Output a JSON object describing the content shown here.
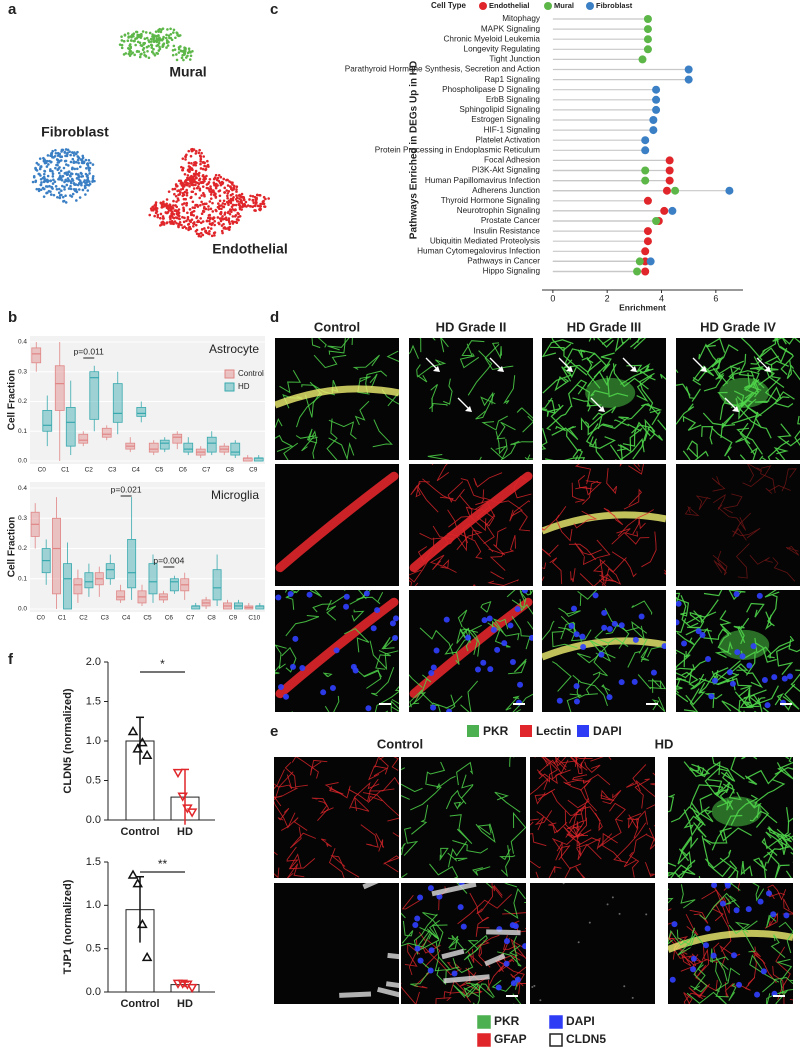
{
  "panel_labels": [
    "a",
    "b",
    "c",
    "d",
    "e",
    "f"
  ],
  "umap": {
    "clusters": [
      "Mural",
      "Fibroblast",
      "Endothelial"
    ]
  },
  "chart_data": [
    {
      "type": "lollipop",
      "y_label": "Pathways Enriched in DEGs Up in HD",
      "x_label": "Enrichment",
      "legend_title": "Cell Type",
      "categories": [
        "Mitophagy",
        "MAPK Signaling",
        "Chronic Myeloid Leukemia",
        "Longevity Regulating",
        "Tight Junction",
        "Parathyroid Hormone Synthesis, Secretion and Action",
        "Rap1 Signaling",
        "Phospholipase D Signaling",
        "ErbB Signaling",
        "Sphingolipid Signaling",
        "Estrogen Signaling",
        "HIF-1 Signaling",
        "Platelet Activation",
        "Protein Processing in Endoplasmic Reticulum",
        "Focal Adhesion",
        "PI3K-Akt Signaling",
        "Human Papillomavirus Infection",
        "Adherens Junction",
        "Thyroid Hormone Signaling",
        "Neurotrophin Signaling",
        "Prostate Cancer",
        "Insulin Resistance",
        "Ubiquitin Mediated Proteolysis",
        "Human Cytomegalovirus Infection",
        "Pathways in Cancer",
        "Hippo Signaling"
      ],
      "series": [
        {
          "name": "Endothelial",
          "color": "#e0262a",
          "values": [
            null,
            null,
            null,
            null,
            null,
            null,
            null,
            null,
            null,
            null,
            null,
            null,
            null,
            null,
            4.3,
            4.3,
            4.3,
            4.2,
            3.5,
            4.1,
            3.9,
            3.5,
            3.5,
            3.4,
            3.4,
            3.4
          ]
        },
        {
          "name": "Mural",
          "color": "#5cb748",
          "values": [
            3.5,
            3.5,
            3.5,
            3.5,
            3.3,
            null,
            null,
            null,
            null,
            null,
            null,
            null,
            null,
            null,
            null,
            3.4,
            3.4,
            4.5,
            null,
            null,
            3.8,
            null,
            null,
            null,
            3.2,
            3.1
          ]
        },
        {
          "name": "Fibroblast",
          "color": "#3b7fc4",
          "values": [
            null,
            null,
            null,
            null,
            null,
            5.0,
            5.0,
            3.8,
            3.8,
            3.8,
            3.7,
            3.7,
            3.4,
            3.4,
            null,
            null,
            null,
            6.5,
            null,
            4.4,
            null,
            null,
            null,
            null,
            3.6,
            null
          ]
        }
      ],
      "xlim": [
        -0.4,
        7.0
      ],
      "xticks": [
        0,
        2,
        4,
        6
      ]
    },
    {
      "type": "box",
      "title": "Astrocyte",
      "y_label": "Cell Fraction",
      "legend": "upper right",
      "grid": true,
      "categories": [
        "C0",
        "C1",
        "C2",
        "C3",
        "C4",
        "C5",
        "C6",
        "C7",
        "C8",
        "C9"
      ],
      "series": [
        {
          "name": "Control",
          "color": "#e08585",
          "values": [
            [
              0.3,
              0.33,
              0.36,
              0.38,
              0.4
            ],
            [
              0.0,
              0.17,
              0.26,
              0.32,
              0.4
            ],
            [
              0.05,
              0.06,
              0.07,
              0.09,
              0.1
            ],
            [
              0.07,
              0.08,
              0.09,
              0.11,
              0.12
            ],
            [
              0.03,
              0.04,
              0.05,
              0.06,
              0.08
            ],
            [
              0.02,
              0.03,
              0.04,
              0.06,
              0.07
            ],
            [
              0.04,
              0.06,
              0.08,
              0.09,
              0.1
            ],
            [
              0.01,
              0.02,
              0.03,
              0.04,
              0.05
            ],
            [
              0.02,
              0.03,
              0.04,
              0.05,
              0.06
            ],
            [
              0.0,
              0.0,
              0.01,
              0.01,
              0.02
            ]
          ]
        },
        {
          "name": "HD",
          "color": "#38a9ae",
          "values": [
            [
              0.05,
              0.1,
              0.12,
              0.17,
              0.22
            ],
            [
              0.02,
              0.05,
              0.13,
              0.18,
              0.27
            ],
            [
              0.1,
              0.14,
              0.28,
              0.3,
              0.32
            ],
            [
              0.09,
              0.13,
              0.16,
              0.26,
              0.3
            ],
            [
              0.13,
              0.15,
              0.16,
              0.18,
              0.2
            ],
            [
              0.03,
              0.04,
              0.06,
              0.07,
              0.08
            ],
            [
              0.02,
              0.03,
              0.04,
              0.06,
              0.08
            ],
            [
              0.02,
              0.03,
              0.06,
              0.08,
              0.1
            ],
            [
              0.01,
              0.02,
              0.03,
              0.06,
              0.07
            ],
            [
              0.0,
              0.0,
              0.01,
              0.01,
              0.02
            ]
          ]
        }
      ],
      "annotations": [
        "p=0.011"
      ],
      "ylim": [
        -0.01,
        0.42
      ],
      "yticks": [
        {
          "value": 0,
          "label": "0.0"
        },
        0.1,
        0.2,
        0.3,
        0.4
      ]
    },
    {
      "type": "box",
      "title": "Microglia",
      "y_label": "Cell Fraction",
      "grid": true,
      "categories": [
        "C0",
        "C1",
        "C2",
        "C3",
        "C4",
        "C5",
        "C6",
        "C7",
        "C8",
        "C9",
        "C10"
      ],
      "series": [
        {
          "color": "#e08585",
          "values": [
            [
              0.2,
              0.24,
              0.28,
              0.32,
              0.35
            ],
            [
              0.0,
              0.05,
              0.2,
              0.3,
              0.37
            ],
            [
              0.02,
              0.05,
              0.08,
              0.1,
              0.13
            ],
            [
              0.04,
              0.08,
              0.1,
              0.12,
              0.14
            ],
            [
              0.02,
              0.03,
              0.04,
              0.06,
              0.08
            ],
            [
              0.01,
              0.02,
              0.04,
              0.06,
              0.08
            ],
            [
              0.02,
              0.03,
              0.04,
              0.05,
              0.06
            ],
            [
              0.03,
              0.06,
              0.08,
              0.1,
              0.12
            ],
            [
              0.0,
              0.01,
              0.02,
              0.03,
              0.04
            ],
            [
              0.0,
              0.0,
              0.01,
              0.02,
              0.03
            ],
            [
              0.0,
              0.0,
              0.005,
              0.01,
              0.02
            ]
          ]
        },
        {
          "color": "#38a9ae",
          "values": [
            [
              0.08,
              0.12,
              0.16,
              0.2,
              0.23
            ],
            [
              0.0,
              0.0,
              0.1,
              0.15,
              0.22
            ],
            [
              0.04,
              0.07,
              0.09,
              0.12,
              0.15
            ],
            [
              0.08,
              0.1,
              0.13,
              0.15,
              0.18
            ],
            [
              0.03,
              0.07,
              0.12,
              0.23,
              0.37
            ],
            [
              0.02,
              0.05,
              0.09,
              0.15,
              0.18
            ],
            [
              0.05,
              0.06,
              0.09,
              0.1,
              0.11
            ],
            [
              0.0,
              0.0,
              0.01,
              0.01,
              0.02
            ],
            [
              0.01,
              0.03,
              0.07,
              0.13,
              0.18
            ],
            [
              0.0,
              0.0,
              0.01,
              0.02,
              0.03
            ],
            [
              0.0,
              0.0,
              0.01,
              0.01,
              0.02
            ]
          ]
        }
      ],
      "annotations": [
        "p=0.021",
        "p=0.004"
      ],
      "ylim": [
        -0.01,
        0.42
      ],
      "yticks": [
        {
          "value": 0,
          "label": "0.0"
        },
        0.1,
        0.2,
        0.3,
        0.4
      ]
    },
    {
      "type": "bar",
      "y_label": "CLDN5 (normalized)",
      "categories": [
        "Control",
        "HD"
      ],
      "values": [
        1,
        0.29
      ],
      "errors": [
        0.3,
        0.35
      ],
      "points": [
        [
          1.12,
          0.9,
          0.98,
          0.82
        ],
        [
          0.6,
          0.3,
          0.15,
          0.1
        ]
      ],
      "point_colors": [
        "#111111",
        "#e0262a"
      ],
      "markers": [
        "triangle-up",
        "triangle-down"
      ],
      "significance": "*",
      "ylim": [
        0,
        2
      ],
      "yticks": [
        {
          "value": 0,
          "label": "0.0"
        },
        0.5,
        {
          "value": 1,
          "label": "1.0"
        },
        1.5,
        {
          "value": 2,
          "label": "2.0"
        }
      ]
    },
    {
      "type": "bar",
      "y_label": "TJP1 (normalized)",
      "categories": [
        "Control",
        "HD"
      ],
      "values": [
        0.95,
        0.085
      ],
      "errors": [
        0.38,
        0.03
      ],
      "points": [
        [
          1.35,
          1.25,
          0.78,
          0.4
        ],
        [
          0.1,
          0.1,
          0.09,
          0.05
        ]
      ],
      "point_colors": [
        "#111111",
        "#e0262a"
      ],
      "markers": [
        "triangle-up",
        "triangle-down"
      ],
      "significance": "**",
      "ylim": [
        0,
        1.5
      ],
      "yticks": [
        {
          "value": 0,
          "label": "0.0"
        },
        0.5,
        {
          "value": 1,
          "label": "1.0"
        },
        1.5
      ]
    }
  ],
  "panel_d": {
    "columns": [
      "Control",
      "HD Grade II",
      "HD Grade III",
      "HD Grade IV"
    ],
    "legend": [
      "PKR",
      "Lectin",
      "DAPI"
    ]
  },
  "panel_e": {
    "groups": [
      "Control",
      "HD"
    ],
    "legend": [
      "PKR",
      "DAPI",
      "GFAP",
      "CLDN5"
    ]
  }
}
